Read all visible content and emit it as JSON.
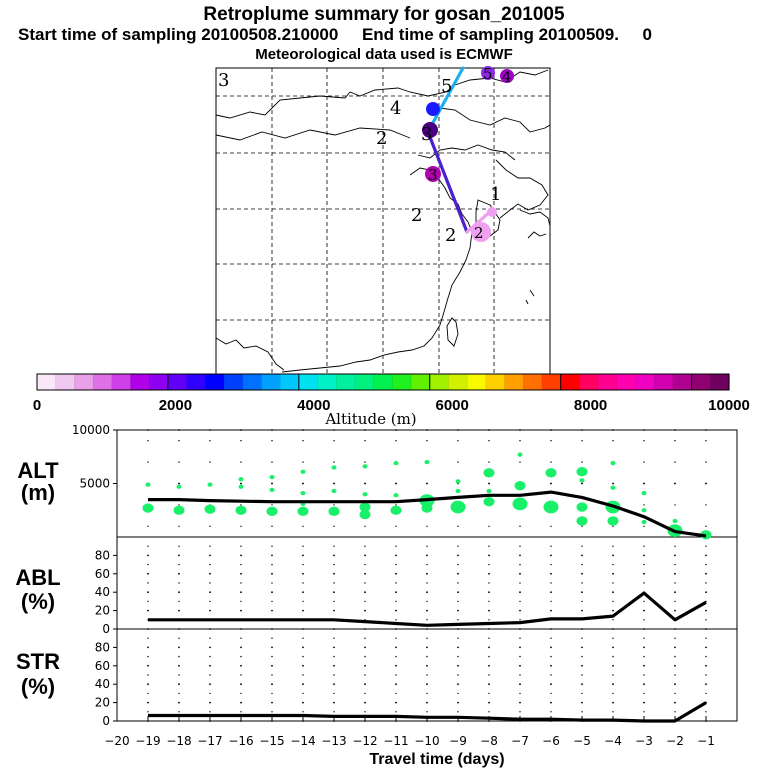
{
  "header": {
    "title": "Retroplume summary for gosan_201005",
    "sampling_line": "Start time of sampling 20100508.210000     End time of sampling 20100509.     0",
    "met_line": "Meteorological data used is ECMWF"
  },
  "map": {
    "panel_label": "3",
    "trajectory_labels": [
      "5",
      "4",
      "3",
      "2",
      "1",
      "2",
      "2"
    ],
    "markers": [
      {
        "label": "5",
        "color": "#8a2be2"
      },
      {
        "label": "4",
        "color": "#a000c8"
      },
      {
        "label": "4",
        "color": "#1a1aff"
      },
      {
        "label": "3",
        "color": "#4b0082"
      },
      {
        "label": "3",
        "color": "#b000b0"
      },
      {
        "label": "2",
        "color": "#f0a0f0"
      },
      {
        "label": "1",
        "color": "#f0a0f0"
      }
    ]
  },
  "colorbar": {
    "ticks": [
      "0",
      "2000",
      "4000",
      "6000",
      "8000",
      "10000"
    ],
    "label": "Altitude (m)",
    "colors": [
      "#f8e8f8",
      "#f0c8f0",
      "#e8a0e8",
      "#e070e8",
      "#d040e8",
      "#b000e8",
      "#9000f0",
      "#6000f8",
      "#3000ff",
      "#0000ff",
      "#0040ff",
      "#0070ff",
      "#00a0ff",
      "#00c8ff",
      "#00e0f0",
      "#00f0c8",
      "#00f0a0",
      "#00f080",
      "#00f050",
      "#20f020",
      "#60f000",
      "#a0f000",
      "#d0f000",
      "#f8f800",
      "#ffd000",
      "#ffa000",
      "#ff7000",
      "#ff4000",
      "#ff0000",
      "#ff0060",
      "#ff0090",
      "#ff00b0",
      "#f000c0",
      "#d000b0",
      "#b00090",
      "#900070",
      "#700060"
    ]
  },
  "panels": {
    "alt": {
      "label_top": "ALT",
      "label_bottom": "(m)"
    },
    "abl": {
      "label_top": "ABL",
      "label_bottom": "(%)"
    },
    "str": {
      "label_top": "STR",
      "label_bottom": "(%)"
    }
  },
  "xaxis": {
    "label": "Travel time (days)"
  },
  "chart_data": [
    {
      "type": "line",
      "name": "ALT",
      "ylabel": "ALT (m)",
      "xlim": [
        -20,
        0
      ],
      "ylim": [
        0,
        10000
      ],
      "yticks": [
        "5000",
        "10000"
      ],
      "xticks": [
        "−20",
        "−19",
        "−18",
        "−17",
        "−16",
        "−15",
        "−14",
        "−13",
        "−12",
        "−11",
        "−10",
        "−9",
        "−8",
        "−7",
        "−6",
        "−5",
        "−4",
        "−3",
        "−2",
        "−1"
      ],
      "x": [
        -19,
        -18,
        -17,
        -16,
        -15,
        -14,
        -13,
        -12,
        -11,
        -10,
        -9,
        -8,
        -7,
        -6,
        -5,
        -4,
        -3,
        -2,
        -1
      ],
      "mean_altitude": [
        3500,
        3500,
        3400,
        3350,
        3300,
        3300,
        3300,
        3300,
        3300,
        3500,
        3700,
        3900,
        3900,
        4200,
        3700,
        2900,
        1900,
        500,
        100
      ],
      "points": [
        {
          "x": -19,
          "y": 4900,
          "s": 1
        },
        {
          "x": -19,
          "y": 2700,
          "s": 2
        },
        {
          "x": -18,
          "y": 4700,
          "s": 1
        },
        {
          "x": -18,
          "y": 2500,
          "s": 2
        },
        {
          "x": -17,
          "y": 4900,
          "s": 1
        },
        {
          "x": -17,
          "y": 2600,
          "s": 2
        },
        {
          "x": -16,
          "y": 5400,
          "s": 1
        },
        {
          "x": -16,
          "y": 4700,
          "s": 1
        },
        {
          "x": -16,
          "y": 2500,
          "s": 2
        },
        {
          "x": -15,
          "y": 5600,
          "s": 1
        },
        {
          "x": -15,
          "y": 4400,
          "s": 1
        },
        {
          "x": -15,
          "y": 2400,
          "s": 2
        },
        {
          "x": -14,
          "y": 6100,
          "s": 1
        },
        {
          "x": -14,
          "y": 4100,
          "s": 1
        },
        {
          "x": -14,
          "y": 3100,
          "s": 1
        },
        {
          "x": -14,
          "y": 2400,
          "s": 2
        },
        {
          "x": -13,
          "y": 6500,
          "s": 1
        },
        {
          "x": -13,
          "y": 4300,
          "s": 1
        },
        {
          "x": -13,
          "y": 2400,
          "s": 2
        },
        {
          "x": -12,
          "y": 6600,
          "s": 1
        },
        {
          "x": -12,
          "y": 4000,
          "s": 1
        },
        {
          "x": -12,
          "y": 2800,
          "s": 2
        },
        {
          "x": -12,
          "y": 2100,
          "s": 2
        },
        {
          "x": -11,
          "y": 6900,
          "s": 1
        },
        {
          "x": -11,
          "y": 3900,
          "s": 1
        },
        {
          "x": -11,
          "y": 2500,
          "s": 2
        },
        {
          "x": -10,
          "y": 7000,
          "s": 1
        },
        {
          "x": -10,
          "y": 3400,
          "s": 3
        },
        {
          "x": -10,
          "y": 2700,
          "s": 2
        },
        {
          "x": -9,
          "y": 5200,
          "s": 1
        },
        {
          "x": -9,
          "y": 4300,
          "s": 1
        },
        {
          "x": -9,
          "y": 2800,
          "s": 3
        },
        {
          "x": -8,
          "y": 6000,
          "s": 2
        },
        {
          "x": -8,
          "y": 4300,
          "s": 1
        },
        {
          "x": -8,
          "y": 3300,
          "s": 2
        },
        {
          "x": -7,
          "y": 7700,
          "s": 1
        },
        {
          "x": -7,
          "y": 4800,
          "s": 2
        },
        {
          "x": -7,
          "y": 3100,
          "s": 3
        },
        {
          "x": -6,
          "y": 6000,
          "s": 2
        },
        {
          "x": -6,
          "y": 2800,
          "s": 3
        },
        {
          "x": -5,
          "y": 6100,
          "s": 2
        },
        {
          "x": -5,
          "y": 5300,
          "s": 1
        },
        {
          "x": -5,
          "y": 2800,
          "s": 2
        },
        {
          "x": -5,
          "y": 1500,
          "s": 2
        },
        {
          "x": -4,
          "y": 6900,
          "s": 1
        },
        {
          "x": -4,
          "y": 4600,
          "s": 1
        },
        {
          "x": -4,
          "y": 2800,
          "s": 3
        },
        {
          "x": -4,
          "y": 1500,
          "s": 2
        },
        {
          "x": -3,
          "y": 4100,
          "s": 1
        },
        {
          "x": -3,
          "y": 2500,
          "s": 1
        },
        {
          "x": -3,
          "y": 1400,
          "s": 1
        },
        {
          "x": -2,
          "y": 1500,
          "s": 1
        },
        {
          "x": -2,
          "y": 600,
          "s": 3
        },
        {
          "x": -1,
          "y": 200,
          "s": 2
        }
      ]
    },
    {
      "type": "line",
      "name": "ABL",
      "ylabel": "ABL (%)",
      "xlim": [
        -20,
        0
      ],
      "ylim": [
        0,
        100
      ],
      "yticks": [
        "0",
        "20",
        "40",
        "60",
        "80"
      ],
      "x": [
        -19,
        -18,
        -17,
        -16,
        -15,
        -14,
        -13,
        -12,
        -11,
        -10,
        -9,
        -8,
        -7,
        -6,
        -5,
        -4,
        -3,
        -2,
        -1
      ],
      "values": [
        10,
        10,
        10,
        10,
        10,
        10,
        10,
        8,
        6,
        4,
        5,
        6,
        7,
        11,
        11,
        14,
        39,
        10,
        29
      ]
    },
    {
      "type": "line",
      "name": "STR",
      "ylabel": "STR (%)",
      "xlim": [
        -20,
        0
      ],
      "ylim": [
        0,
        100
      ],
      "yticks": [
        "0",
        "20",
        "40",
        "60",
        "80"
      ],
      "x": [
        -19,
        -18,
        -17,
        -16,
        -15,
        -14,
        -13,
        -12,
        -11,
        -10,
        -9,
        -8,
        -7,
        -6,
        -5,
        -4,
        -3,
        -2,
        -1
      ],
      "values": [
        6,
        6,
        6,
        6,
        6,
        6,
        5,
        5,
        5,
        4,
        4,
        3,
        2,
        2,
        1,
        1,
        0,
        0,
        20
      ]
    }
  ]
}
